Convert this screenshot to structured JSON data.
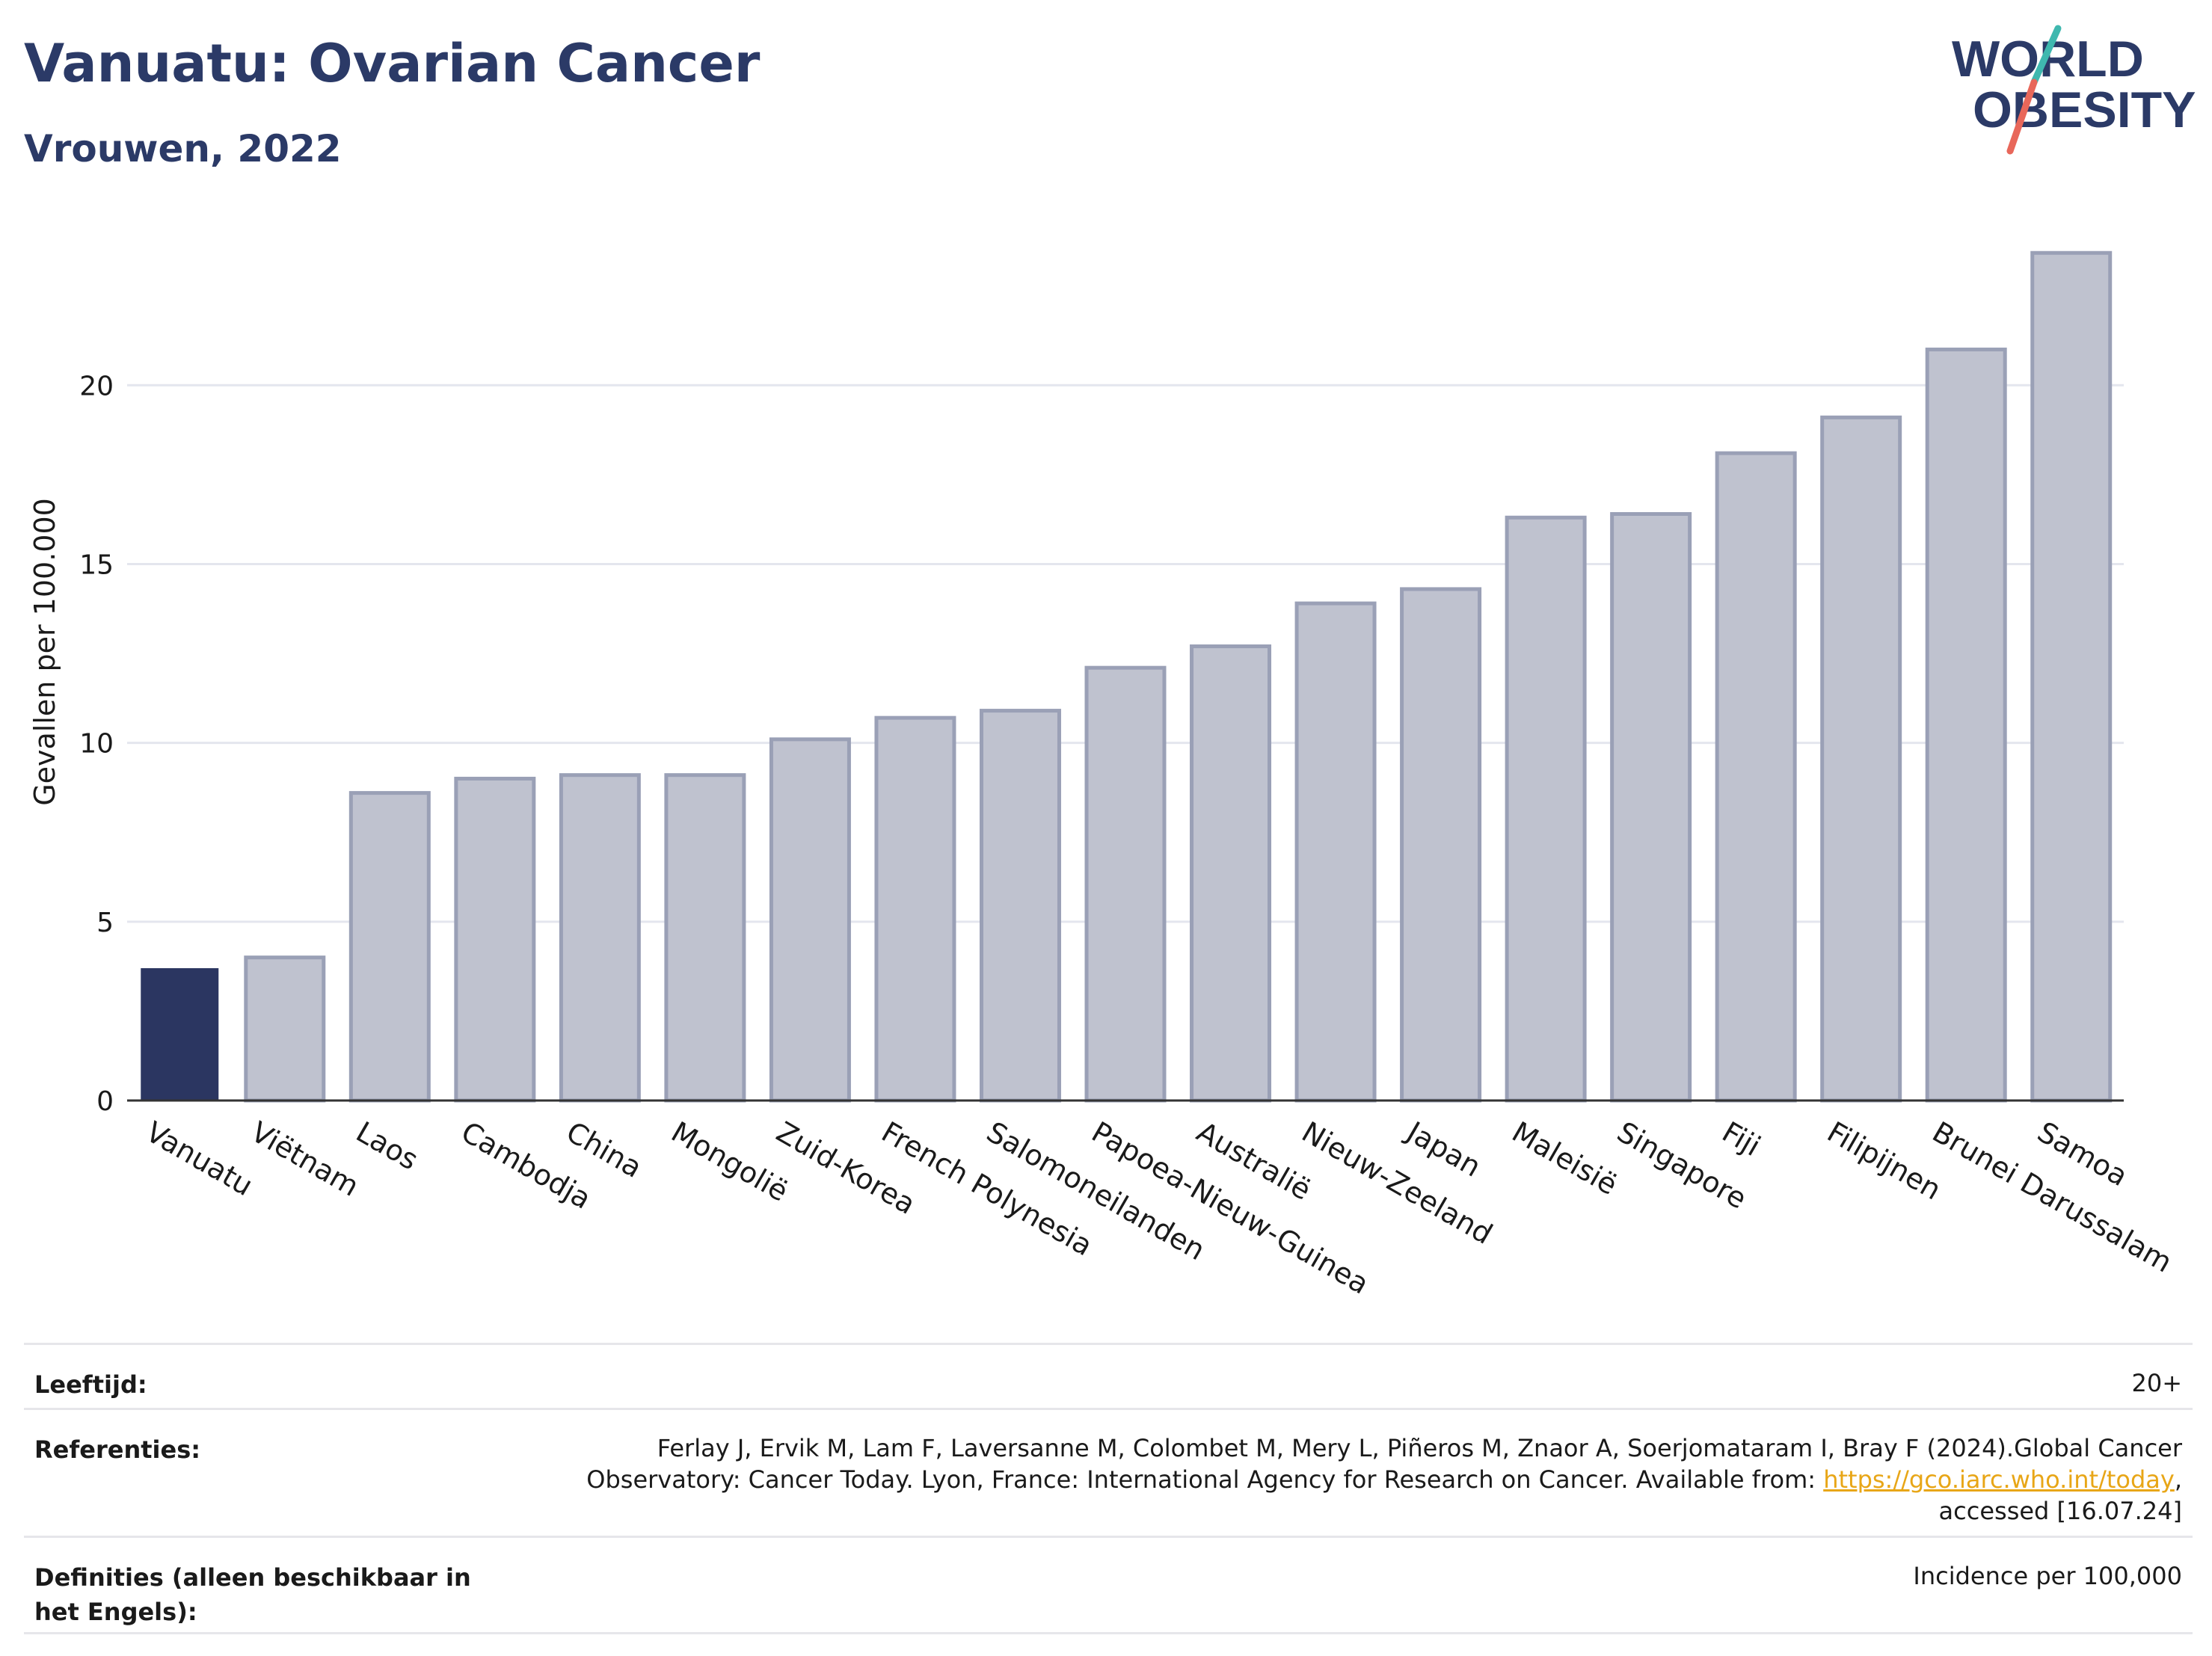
{
  "header": {
    "title": "Vanuatu: Ovarian Cancer",
    "subtitle": "Vrouwen, 2022"
  },
  "logo": {
    "line1": "WORLD",
    "line2": "OBESITY",
    "colors": {
      "text": "#2b3a67",
      "teal": "#3fb8af",
      "coral": "#e8675a"
    }
  },
  "chart_data": {
    "type": "bar",
    "ylabel": "Gevallen per 100.000",
    "ylim": [
      0,
      24.5
    ],
    "yticks": [
      0,
      5,
      10,
      15,
      20
    ],
    "grid": true,
    "highlight": "Vanuatu",
    "colors": {
      "highlight": "#2b3661",
      "bar": "#bfc2cf",
      "bar_edge": "#9aa0b6",
      "grid": "#e4e6ee",
      "axis": "#333333"
    },
    "categories": [
      "Vanuatu",
      "Viëtnam",
      "Laos",
      "Cambodja",
      "China",
      "Mongolië",
      "Zuid-Korea",
      "French Polynesia",
      "Salomoneilanden",
      "Papoea-Nieuw-Guinea",
      "Australië",
      "Nieuw-Zeeland",
      "Japan",
      "Maleisië",
      "Singapore",
      "Fiji",
      "Filipijnen",
      "Brunei Darussalam",
      "Samoa"
    ],
    "values": [
      3.7,
      4.0,
      8.6,
      9.0,
      9.1,
      9.1,
      10.1,
      10.7,
      10.9,
      12.1,
      12.7,
      13.9,
      14.3,
      16.3,
      16.4,
      18.1,
      19.1,
      21.0,
      23.7
    ]
  },
  "info": {
    "age_label": "Leeftijd:",
    "age_value": "20+",
    "references_label": "Referenties:",
    "references_text": "Ferlay J, Ervik M, Lam F, Laversanne M, Colombet M, Mery L, Piñeros M, Znaor A, Soerjomataram I, Bray F (2024).Global Cancer Observatory: Cancer Today. Lyon, France: International Agency for Research on Cancer. Available from: ",
    "references_link": "https://gco.iarc.who.int/today",
    "references_tail": ", accessed [16.07.24]",
    "definitions_label": "Definities (alleen beschikbaar in het Engels):",
    "definitions_value": "Incidence per 100,000"
  }
}
